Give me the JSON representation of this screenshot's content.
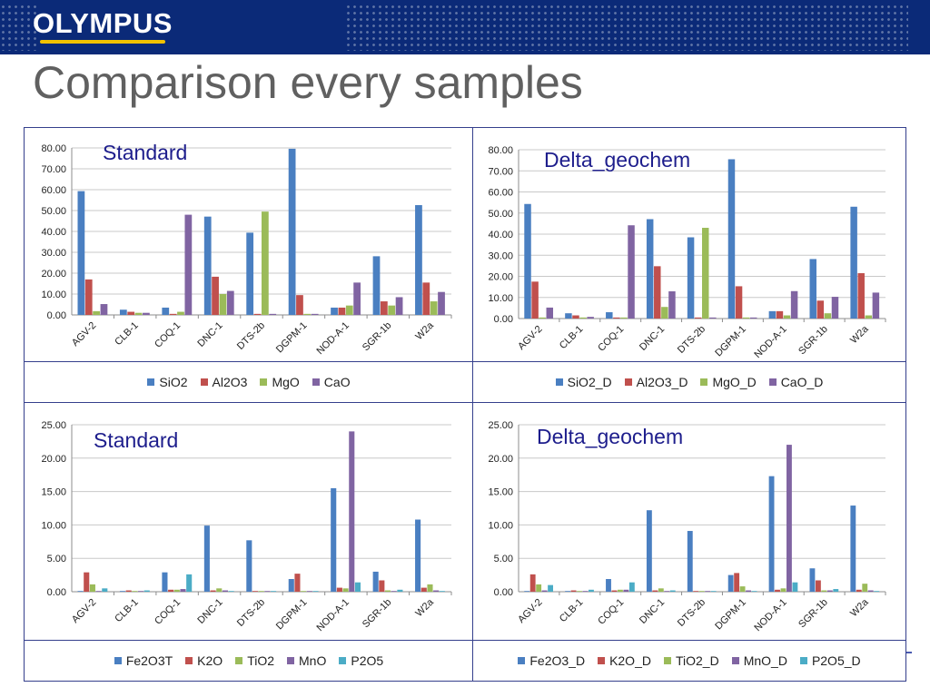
{
  "header": {
    "logo_text": "OLYMPUS",
    "title": "Comparison every samples"
  },
  "colors": {
    "blue": "#4a7fc1",
    "red": "#c0504d",
    "green": "#9bbb59",
    "purple": "#8064a2",
    "cyan": "#4bacc6",
    "header_band": "#0b2a78",
    "logo_accent": "#f2c200",
    "panel_border": "#343f8c"
  },
  "panels": [
    {
      "label": "Standard"
    },
    {
      "label": "Delta_geochem"
    },
    {
      "label": "Standard"
    },
    {
      "label": "Delta_geochem"
    }
  ],
  "chart_data": [
    {
      "type": "bar",
      "title": "",
      "xlabel": "",
      "ylabel": "",
      "ylim": [
        0,
        80
      ],
      "yticks": [
        "0.00",
        "10.00",
        "20.00",
        "30.00",
        "40.00",
        "50.00",
        "60.00",
        "70.00",
        "80.00"
      ],
      "categories": [
        "AGV-2",
        "CLB-1",
        "COQ-1",
        "DNC-1",
        "DTS-2b",
        "DGPM-1",
        "NOD-A-1",
        "SGR-1b",
        "W2a"
      ],
      "legend_position": "bottom",
      "series": [
        {
          "name": "SiO2",
          "color": "#4a7fc1",
          "values": [
            59.3,
            2.5,
            3.5,
            47.1,
            39.4,
            79.6,
            3.5,
            28.1,
            52.6
          ]
        },
        {
          "name": "Al2O3",
          "color": "#c0504d",
          "values": [
            17.0,
            1.5,
            0.5,
            18.3,
            0.5,
            9.5,
            3.5,
            6.5,
            15.5
          ]
        },
        {
          "name": "MgO",
          "color": "#9bbb59",
          "values": [
            1.8,
            1.0,
            1.5,
            10.0,
            49.5,
            0.5,
            4.5,
            4.5,
            6.5
          ]
        },
        {
          "name": "CaO",
          "color": "#8064a2",
          "values": [
            5.2,
            1.0,
            48.0,
            11.5,
            0.5,
            0.5,
            15.5,
            8.5,
            11.0
          ]
        }
      ]
    },
    {
      "type": "bar",
      "title": "",
      "xlabel": "",
      "ylabel": "",
      "ylim": [
        0,
        80
      ],
      "yticks": [
        "0.00",
        "10.00",
        "20.00",
        "30.00",
        "40.00",
        "50.00",
        "60.00",
        "70.00",
        "80.00"
      ],
      "categories": [
        "AGV-2",
        "CLB-1",
        "COQ-1",
        "DNC-1",
        "DTS-2b",
        "DGPM-1",
        "NOD-A-1",
        "SGR-1b",
        "W2a"
      ],
      "legend_position": "bottom",
      "series": [
        {
          "name": "SiO2_D",
          "color": "#4a7fc1",
          "values": [
            54.3,
            2.5,
            3.0,
            47.1,
            38.5,
            75.5,
            3.5,
            28.2,
            53.0
          ]
        },
        {
          "name": "Al2O3_D",
          "color": "#c0504d",
          "values": [
            17.5,
            1.5,
            0.5,
            24.8,
            0.5,
            15.3,
            3.5,
            8.5,
            21.5
          ]
        },
        {
          "name": "MgO_D",
          "color": "#9bbb59",
          "values": [
            0.5,
            0.5,
            0.5,
            5.5,
            43.0,
            0.5,
            1.5,
            2.5,
            1.5
          ]
        },
        {
          "name": "CaO_D",
          "color": "#8064a2",
          "values": [
            5.2,
            0.8,
            44.2,
            12.9,
            0.5,
            0.5,
            13.0,
            10.3,
            12.3
          ]
        }
      ]
    },
    {
      "type": "bar",
      "title": "",
      "xlabel": "",
      "ylabel": "",
      "ylim": [
        0,
        25
      ],
      "yticks": [
        "0.00",
        "5.00",
        "10.00",
        "15.00",
        "20.00",
        "25.00"
      ],
      "categories": [
        "AGV-2",
        "CLB-1",
        "COQ-1",
        "DNC-1",
        "DTS-2b",
        "DGPM-1",
        "NOD-A-1",
        "SGR-1b",
        "W2a"
      ],
      "legend_position": "bottom",
      "series": [
        {
          "name": "Fe2O3T",
          "color": "#4a7fc1",
          "values": [
            0.1,
            0.1,
            2.9,
            9.9,
            7.7,
            1.9,
            15.5,
            3.0,
            10.8
          ]
        },
        {
          "name": "K2O",
          "color": "#c0504d",
          "values": [
            2.9,
            0.2,
            0.3,
            0.2,
            0.05,
            2.7,
            0.6,
            1.7,
            0.6
          ]
        },
        {
          "name": "TiO2",
          "color": "#9bbb59",
          "values": [
            1.1,
            0.1,
            0.3,
            0.5,
            0.05,
            0.05,
            0.5,
            0.2,
            1.1
          ]
        },
        {
          "name": "MnO",
          "color": "#8064a2",
          "values": [
            0.1,
            0.05,
            0.4,
            0.2,
            0.1,
            0.05,
            24.0,
            0.1,
            0.2
          ]
        },
        {
          "name": "P2O5",
          "color": "#4bacc6",
          "values": [
            0.5,
            0.2,
            2.6,
            0.1,
            0.05,
            0.05,
            1.4,
            0.3,
            0.1
          ]
        }
      ]
    },
    {
      "type": "bar",
      "title": "",
      "xlabel": "",
      "ylabel": "",
      "ylim": [
        0,
        25
      ],
      "yticks": [
        "0.00",
        "5.00",
        "10.00",
        "15.00",
        "20.00",
        "25.00"
      ],
      "categories": [
        "AGV-2",
        "CLB-1",
        "COQ-1",
        "DNC-1",
        "DTS-2b",
        "DGPM-1",
        "NOD-A-1",
        "SGR-1b",
        "W2a"
      ],
      "legend_position": "bottom",
      "series": [
        {
          "name": "Fe2O3_D",
          "color": "#4a7fc1",
          "values": [
            0.1,
            0.1,
            1.9,
            12.2,
            9.1,
            2.5,
            17.3,
            3.5,
            12.9
          ]
        },
        {
          "name": "K2O_D",
          "color": "#c0504d",
          "values": [
            2.6,
            0.2,
            0.2,
            0.2,
            0.05,
            2.8,
            0.3,
            1.7,
            0.3
          ]
        },
        {
          "name": "TiO2_D",
          "color": "#9bbb59",
          "values": [
            1.1,
            0.1,
            0.3,
            0.5,
            0.05,
            0.8,
            0.5,
            0.2,
            1.2
          ]
        },
        {
          "name": "MnO_D",
          "color": "#8064a2",
          "values": [
            0.2,
            0.05,
            0.3,
            0.1,
            0.1,
            0.2,
            22.0,
            0.2,
            0.2
          ]
        },
        {
          "name": "P2O5_D",
          "color": "#4bacc6",
          "values": [
            1.0,
            0.3,
            1.4,
            0.2,
            0.05,
            0.1,
            1.4,
            0.4,
            0.1
          ]
        }
      ]
    }
  ]
}
